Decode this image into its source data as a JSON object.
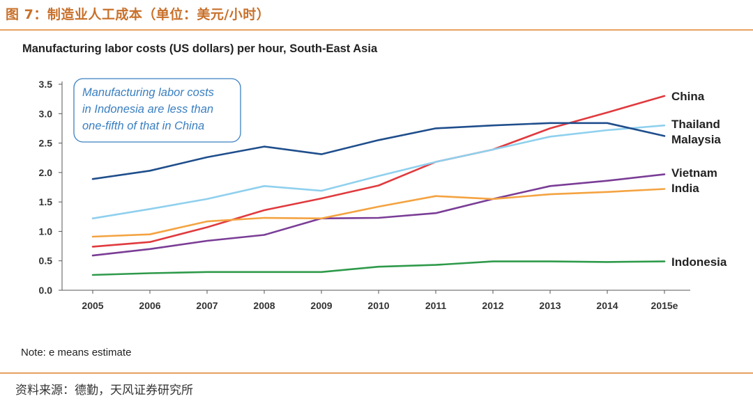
{
  "figure": {
    "title": "图 7：制造业人工成本（单位：美元/小时）",
    "source": "资料来源：德勤，天风证券研究所"
  },
  "chart_data": {
    "type": "line",
    "title": "Manufacturing labor costs (US dollars) per hour, South-East Asia",
    "xlabel": "",
    "ylabel": "",
    "categories": [
      "2005",
      "2006",
      "2007",
      "2008",
      "2009",
      "2010",
      "2011",
      "2012",
      "2013",
      "2014",
      "2015e"
    ],
    "ylim": [
      0,
      3.5
    ],
    "yticks": [
      "0.0",
      "0.5",
      "1.0",
      "1.5",
      "2.0",
      "2.5",
      "3.0",
      "3.5"
    ],
    "grid": false,
    "legend": "end-of-line labels",
    "callout": [
      "Manufacturing labor costs",
      "in Indonesia are less than",
      "one-fifth of that in China"
    ],
    "note": "Note: e means estimate",
    "series": [
      {
        "name": "China",
        "color": "#e03a3e",
        "values": [
          0.74,
          0.82,
          1.07,
          1.36,
          1.56,
          1.78,
          2.18,
          2.39,
          2.75,
          3.02,
          3.3
        ]
      },
      {
        "name": "Thailand",
        "color": "#8fd0ee",
        "values": [
          1.22,
          1.38,
          1.55,
          1.77,
          1.69,
          1.94,
          2.18,
          2.39,
          2.61,
          2.72,
          2.8
        ]
      },
      {
        "name": "Malaysia",
        "color": "#1f4e8c",
        "values": [
          1.89,
          2.03,
          2.26,
          2.44,
          2.31,
          2.55,
          2.75,
          2.8,
          2.84,
          2.84,
          2.62
        ]
      },
      {
        "name": "Vietnam",
        "color": "#7a3d96",
        "values": [
          0.59,
          0.7,
          0.84,
          0.94,
          1.22,
          1.23,
          1.31,
          1.55,
          1.77,
          1.86,
          1.97
        ]
      },
      {
        "name": "India",
        "color": "#f4a341",
        "values": [
          0.91,
          0.95,
          1.17,
          1.23,
          1.22,
          1.42,
          1.6,
          1.55,
          1.63,
          1.67,
          1.72
        ]
      },
      {
        "name": "Indonesia",
        "color": "#2e9a4a",
        "values": [
          0.26,
          0.29,
          0.31,
          0.31,
          0.31,
          0.4,
          0.43,
          0.49,
          0.49,
          0.48,
          0.49
        ]
      }
    ]
  }
}
